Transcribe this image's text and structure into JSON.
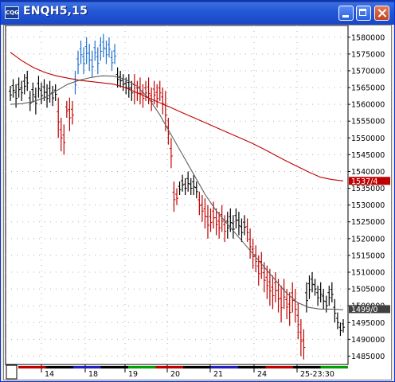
{
  "window": {
    "title": "ENQH5,15",
    "app_icon": "cqg-logo-icon",
    "buttons": [
      "minimize-icon",
      "maximize-icon",
      "close-icon"
    ]
  },
  "chart_data": {
    "type": "ohlc",
    "symbol": "ENQH5,15",
    "title": "",
    "xlabel": "",
    "ylabel": "",
    "ylim": [
      14825,
      15835
    ],
    "grid": "dotted",
    "y_ticks": [
      15800,
      15750,
      15700,
      15650,
      15600,
      15550,
      15500,
      15450,
      15400,
      15350,
      15300,
      15250,
      15200,
      15150,
      15100,
      15050,
      15000,
      14950,
      14900,
      14850
    ],
    "y_tick_labels": [
      "1580000",
      "1575000",
      "1570000",
      "1565000",
      "1560000",
      "1555000",
      "1550000",
      "1545000",
      "1540000",
      "1535000",
      "1530000",
      "1525000",
      "1520000",
      "1515000",
      "1510000",
      "1505000",
      "1500000",
      "1495000",
      "1490000",
      "1485000"
    ],
    "x_tick_labels": [
      "14",
      "18",
      "19",
      "20",
      "21",
      "24",
      "25-23:30"
    ],
    "price_markers": [
      {
        "label": "1537/4",
        "value": 15372,
        "color": "#c00000"
      },
      {
        "label": "1499/0",
        "value": 14990,
        "color": "#404040"
      }
    ],
    "series": [
      {
        "kind": "bars",
        "color": "#000000",
        "values": [
          [
            15655,
            15610
          ],
          [
            15675,
            15620
          ],
          [
            15660,
            15590
          ],
          [
            15680,
            15620
          ],
          [
            15670,
            15610
          ],
          [
            15690,
            15630
          ],
          [
            15700,
            15640
          ],
          [
            15640,
            15580
          ],
          [
            15665,
            15605
          ],
          [
            15650,
            15570
          ],
          [
            15685,
            15620
          ],
          [
            15665,
            15600
          ],
          [
            15675,
            15610
          ],
          [
            15660,
            15590
          ],
          [
            15670,
            15605
          ],
          [
            15655,
            15595
          ],
          [
            15660,
            15610
          ]
        ]
      },
      {
        "kind": "bars",
        "color": "#c00000",
        "values": [
          [
            15620,
            15500
          ],
          [
            15560,
            15460
          ],
          [
            15540,
            15450
          ],
          [
            15610,
            15560
          ]
        ]
      },
      {
        "kind": "bars",
        "color": "#c00000",
        "values": [
          [
            15620,
            15520
          ],
          [
            15610,
            15540
          ]
        ]
      },
      {
        "kind": "bars",
        "color": "#1e6fd0",
        "values": [
          [
            15700,
            15630
          ],
          [
            15760,
            15690
          ],
          [
            15790,
            15720
          ],
          [
            15770,
            15690
          ],
          [
            15800,
            15720
          ],
          [
            15780,
            15700
          ],
          [
            15760,
            15680
          ],
          [
            15790,
            15730
          ],
          [
            15770,
            15690
          ],
          [
            15800,
            15730
          ],
          [
            15810,
            15740
          ],
          [
            15790,
            15720
          ],
          [
            15800,
            15740
          ],
          [
            15760,
            15700
          ],
          [
            15780,
            15720
          ]
        ]
      },
      {
        "kind": "bars",
        "color": "#000000",
        "values": [
          [
            15710,
            15650
          ],
          [
            15700,
            15650
          ],
          [
            15690,
            15640
          ],
          [
            15680,
            15630
          ],
          [
            15690,
            15620
          ],
          [
            15670,
            15610
          ]
        ]
      },
      {
        "kind": "bars",
        "color": "#c00000",
        "values": [
          [
            15690,
            15600
          ],
          [
            15670,
            15610
          ],
          [
            15680,
            15600
          ],
          [
            15660,
            15590
          ],
          [
            15670,
            15610
          ],
          [
            15680,
            15600
          ],
          [
            15650,
            15580
          ],
          [
            15670,
            15600
          ],
          [
            15660,
            15590
          ],
          [
            15670,
            15610
          ],
          [
            15650,
            15570
          ],
          [
            15640,
            15520
          ],
          [
            15560,
            15480
          ],
          [
            15500,
            15410
          ]
        ]
      },
      {
        "kind": "bars",
        "color": "#c00000",
        "values": [
          [
            15370,
            15280
          ],
          [
            15350,
            15300
          ]
        ]
      },
      {
        "kind": "bars",
        "color": "#000000",
        "values": [
          [
            15370,
            15330
          ],
          [
            15390,
            15340
          ],
          [
            15380,
            15330
          ],
          [
            15400,
            15340
          ],
          [
            15380,
            15330
          ],
          [
            15390,
            15330
          ],
          [
            15370,
            15320
          ]
        ]
      },
      {
        "kind": "bars",
        "color": "#c00000",
        "values": [
          [
            15340,
            15270
          ],
          [
            15330,
            15250
          ],
          [
            15320,
            15230
          ],
          [
            15300,
            15200
          ],
          [
            15290,
            15220
          ],
          [
            15310,
            15230
          ],
          [
            15290,
            15210
          ],
          [
            15280,
            15200
          ],
          [
            15300,
            15220
          ],
          [
            15270,
            15190
          ]
        ]
      },
      {
        "kind": "bars",
        "color": "#000000",
        "values": [
          [
            15280,
            15200
          ],
          [
            15290,
            15220
          ],
          [
            15270,
            15200
          ],
          [
            15290,
            15230
          ],
          [
            15280,
            15210
          ],
          [
            15260,
            15190
          ],
          [
            15270,
            15210
          ]
        ]
      },
      {
        "kind": "bars",
        "color": "#c00000",
        "values": [
          [
            15260,
            15190
          ],
          [
            15230,
            15140
          ],
          [
            15200,
            15110
          ],
          [
            15180,
            15100
          ],
          [
            15150,
            15060
          ],
          [
            15160,
            15080
          ],
          [
            15130,
            15040
          ],
          [
            15120,
            15020
          ],
          [
            15110,
            15000
          ],
          [
            15090,
            14990
          ],
          [
            15100,
            15010
          ],
          [
            15080,
            14980
          ],
          [
            15060,
            14950
          ],
          [
            15080,
            14990
          ],
          [
            15050,
            14960
          ],
          [
            15040,
            14940
          ],
          [
            15070,
            14980
          ],
          [
            15050,
            14950
          ],
          [
            15010,
            14900
          ],
          [
            14960,
            14850
          ],
          [
            14930,
            14840
          ]
        ]
      },
      {
        "kind": "bars",
        "color": "#000000",
        "values": [
          [
            15070,
            14980
          ],
          [
            15090,
            15020
          ],
          [
            15100,
            15040
          ],
          [
            15080,
            15030
          ],
          [
            15060,
            15000
          ],
          [
            15070,
            15010
          ],
          [
            15050,
            14990
          ],
          [
            15030,
            14980
          ],
          [
            15060,
            15000
          ],
          [
            15070,
            15010
          ]
        ]
      },
      {
        "kind": "bars",
        "color": "#000000",
        "values": [
          [
            15020,
            14950
          ],
          [
            14980,
            14930
          ],
          [
            14950,
            14910
          ],
          [
            14960,
            14920
          ]
        ]
      },
      {
        "kind": "line",
        "name": "",
        "color": "#606060",
        "values": [
          15600,
          15602,
          15608,
          15620,
          15640,
          15660,
          15672,
          15680,
          15685,
          15684,
          15675,
          15655,
          15620,
          15570,
          15510,
          15450,
          15390,
          15330,
          15280,
          15240,
          15200,
          15160,
          15120,
          15080,
          15040,
          15010,
          14995,
          14990,
          14990,
          14988
        ]
      },
      {
        "kind": "line",
        "name": "",
        "color": "#c00000",
        "values": [
          15755,
          15730,
          15710,
          15695,
          15685,
          15678,
          15672,
          15668,
          15664,
          15660,
          15650,
          15635,
          15620,
          15605,
          15590,
          15575,
          15560,
          15545,
          15530,
          15515,
          15500,
          15485,
          15468,
          15450,
          15432,
          15415,
          15398,
          15383,
          15376,
          15372
        ]
      }
    ],
    "session_colors": [
      "#c00000",
      "#000000",
      "#2020c0",
      "#000000",
      "#00a000",
      "#c00000",
      "#000000",
      "#2020c0",
      "#000000",
      "#c00000",
      "#000000",
      "#00a000"
    ]
  }
}
